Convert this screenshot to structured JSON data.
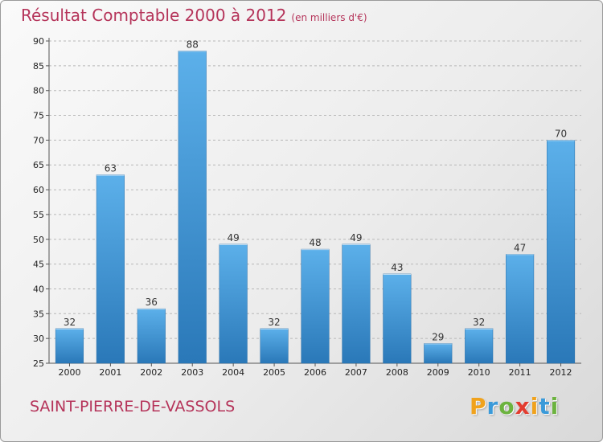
{
  "title": "Résultat Comptable 2000 à 2012",
  "subtitle": "(en milliers d'€)",
  "city": "SAINT-PIERRE-DE-VASSOLS",
  "logo": {
    "letters": [
      {
        "ch": "P",
        "color": "#f0a21c"
      },
      {
        "ch": "r",
        "color": "#3a9ad9"
      },
      {
        "ch": "o",
        "color": "#6cb33f"
      },
      {
        "ch": "x",
        "color": "#e23c2f"
      },
      {
        "ch": "i",
        "color": "#f0a21c"
      },
      {
        "ch": "t",
        "color": "#3a9ad9"
      },
      {
        "ch": "i",
        "color": "#6cb33f"
      }
    ]
  },
  "colors": {
    "title": "#b5345a",
    "bar_light": "#5cb0ea",
    "bar_dark": "#2a78b8",
    "grid": "#b8b8b8"
  },
  "chart_data": {
    "type": "bar",
    "title": "Résultat Comptable 2000 à 2012",
    "subtitle": "(en milliers d'€)",
    "xlabel": "",
    "ylabel": "",
    "categories": [
      "2000",
      "2001",
      "2002",
      "2003",
      "2004",
      "2005",
      "2006",
      "2007",
      "2008",
      "2009",
      "2010",
      "2011",
      "2012"
    ],
    "values": [
      32,
      63,
      36,
      88,
      49,
      32,
      48,
      49,
      43,
      29,
      32,
      47,
      70
    ],
    "ylim": [
      25,
      90
    ],
    "yticks": [
      25,
      30,
      35,
      40,
      45,
      50,
      55,
      60,
      65,
      70,
      75,
      80,
      85,
      90
    ],
    "grid": true,
    "data_labels": true
  }
}
